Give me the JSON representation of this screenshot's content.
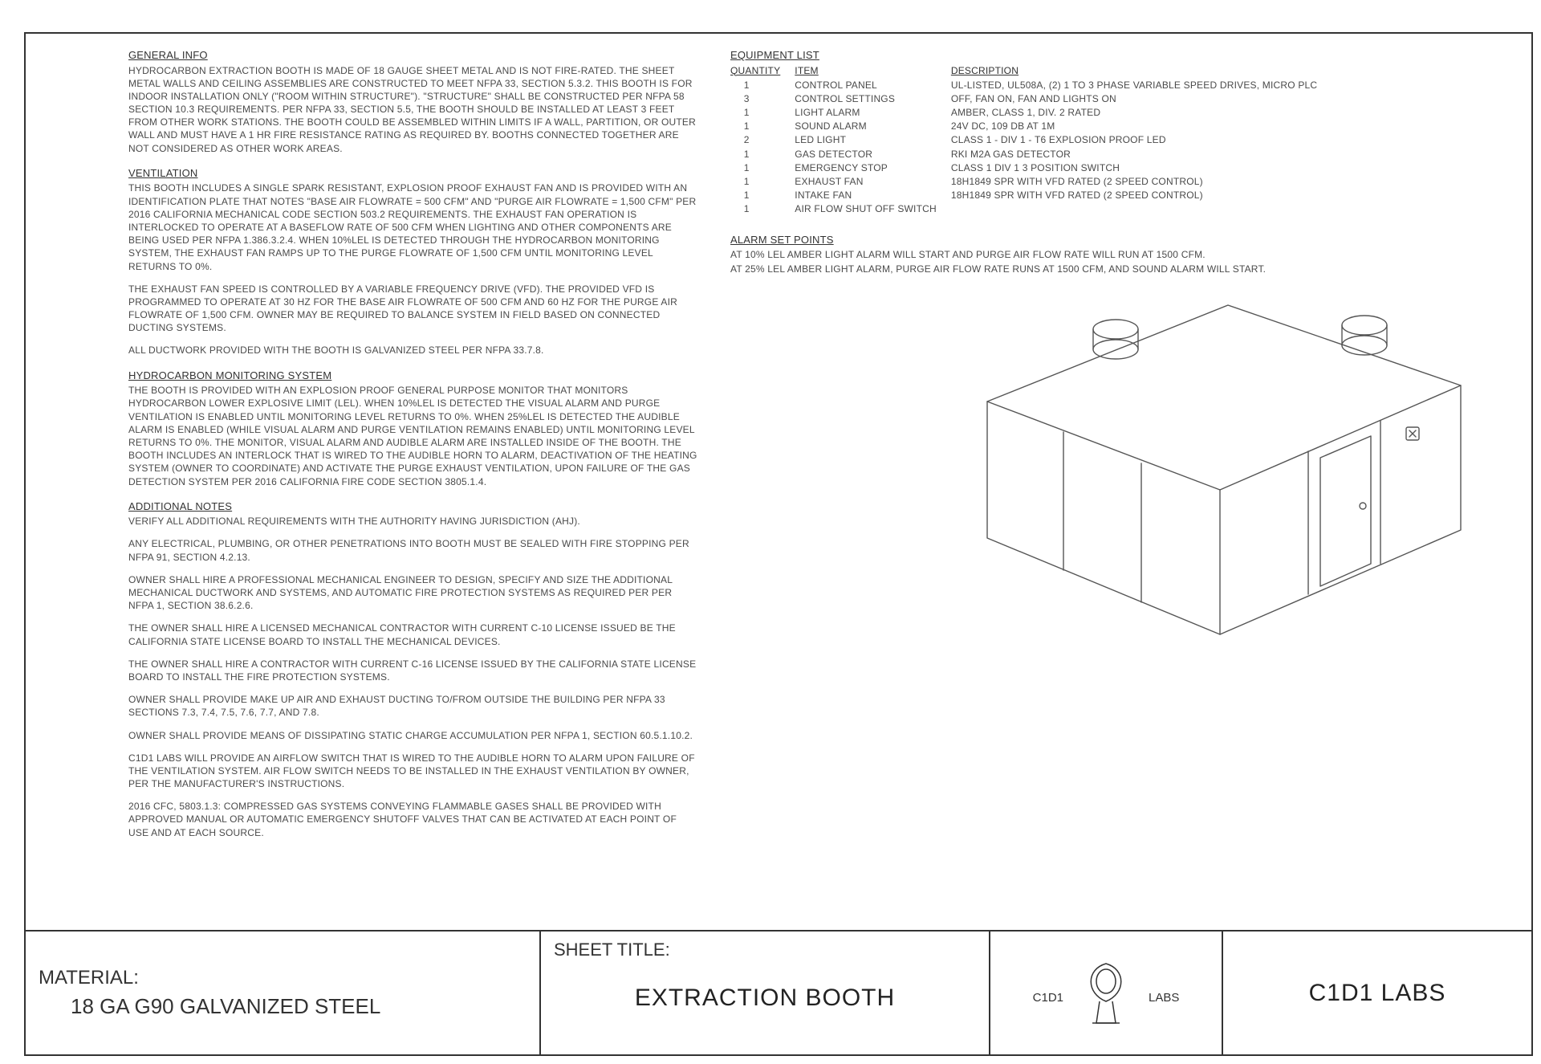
{
  "general_info": {
    "heading": "GENERAL INFO",
    "paragraphs": [
      "HYDROCARBON EXTRACTION BOOTH IS MADE OF 18 GAUGE SHEET METAL AND IS NOT FIRE-RATED. THE SHEET METAL WALLS AND CEILING ASSEMBLIES ARE CONSTRUCTED TO MEET NFPA 33, SECTION 5.3.2. THIS BOOTH IS FOR INDOOR INSTALLATION ONLY (\"ROOM WITHIN STRUCTURE\"). \"STRUCTURE\" SHALL BE CONSTRUCTED PER NFPA 58 SECTION 10.3 REQUIREMENTS. PER NFPA 33, SECTION 5.5, THE BOOTH SHOULD BE INSTALLED AT LEAST 3 FEET FROM OTHER WORK STATIONS. THE BOOTH COULD BE ASSEMBLED WITHIN LIMITS IF A WALL, PARTITION, OR OUTER WALL AND MUST HAVE A 1 HR FIRE RESISTANCE RATING AS REQUIRED BY. BOOTHS CONNECTED TOGETHER ARE NOT CONSIDERED AS OTHER WORK AREAS."
    ]
  },
  "ventilation": {
    "heading": "VENTILATION",
    "paragraphs": [
      "THIS BOOTH INCLUDES A SINGLE SPARK RESISTANT, EXPLOSION PROOF EXHAUST FAN AND IS PROVIDED WITH AN IDENTIFICATION PLATE THAT NOTES \"BASE AIR FLOWRATE = 500 CFM\" AND \"PURGE AIR FLOWRATE = 1,500 CFM\" PER 2016 CALIFORNIA MECHANICAL CODE SECTION 503.2 REQUIREMENTS. THE EXHAUST FAN OPERATION IS INTERLOCKED TO OPERATE AT A BASEFLOW RATE OF 500 CFM WHEN LIGHTING AND OTHER COMPONENTS ARE BEING USED PER NFPA 1.386.3.2.4. WHEN 10%LEL IS DETECTED THROUGH THE HYDROCARBON MONITORING SYSTEM, THE EXHAUST FAN RAMPS UP TO THE PURGE FLOWRATE OF 1,500 CFM UNTIL MONITORING LEVEL RETURNS TO 0%.",
      "THE EXHAUST FAN SPEED IS CONTROLLED BY A VARIABLE FREQUENCY DRIVE (VFD). THE PROVIDED VFD IS PROGRAMMED TO OPERATE AT 30 HZ FOR THE BASE AIR FLOWRATE OF 500 CFM AND 60 HZ FOR THE PURGE AIR FLOWRATE OF 1,500 CFM. OWNER MAY BE REQUIRED TO BALANCE SYSTEM IN FIELD BASED ON CONNECTED DUCTING SYSTEMS.",
      "ALL DUCTWORK PROVIDED WITH THE BOOTH IS GALVANIZED STEEL PER NFPA 33.7.8."
    ]
  },
  "monitoring": {
    "heading": "HYDROCARBON MONITORING SYSTEM",
    "paragraphs": [
      "THE BOOTH IS PROVIDED WITH AN EXPLOSION PROOF GENERAL PURPOSE MONITOR THAT MONITORS HYDROCARBON LOWER EXPLOSIVE LIMIT (LEL). WHEN 10%LEL IS DETECTED THE VISUAL ALARM AND PURGE VENTILATION IS ENABLED UNTIL MONITORING LEVEL RETURNS TO 0%. WHEN 25%LEL IS DETECTED THE AUDIBLE ALARM IS ENABLED (WHILE VISUAL ALARM AND PURGE VENTILATION REMAINS ENABLED) UNTIL MONITORING LEVEL RETURNS TO 0%. THE MONITOR, VISUAL ALARM AND AUDIBLE ALARM ARE INSTALLED INSIDE OF THE BOOTH. THE BOOTH INCLUDES AN INTERLOCK THAT IS WIRED TO THE AUDIBLE HORN TO ALARM, DEACTIVATION OF THE HEATING SYSTEM (OWNER TO COORDINATE) AND ACTIVATE THE PURGE EXHAUST VENTILATION, UPON FAILURE OF THE GAS DETECTION SYSTEM PER 2016 CALIFORNIA FIRE CODE SECTION 3805.1.4."
    ]
  },
  "additional": {
    "heading": "ADDITIONAL NOTES",
    "paragraphs": [
      "VERIFY ALL ADDITIONAL REQUIREMENTS WITH THE AUTHORITY HAVING JURISDICTION (AHJ).",
      "ANY ELECTRICAL, PLUMBING, OR OTHER PENETRATIONS INTO BOOTH MUST BE SEALED WITH FIRE STOPPING PER NFPA 91, SECTION 4.2.13.",
      "OWNER SHALL HIRE A PROFESSIONAL MECHANICAL ENGINEER TO DESIGN, SPECIFY AND SIZE THE ADDITIONAL MECHANICAL DUCTWORK AND SYSTEMS, AND AUTOMATIC FIRE PROTECTION SYSTEMS AS REQUIRED PER PER NFPA 1, SECTION 38.6.2.6.",
      "THE OWNER SHALL HIRE A LICENSED MECHANICAL CONTRACTOR WITH CURRENT C-10 LICENSE ISSUED BE THE CALIFORNIA STATE LICENSE BOARD TO INSTALL THE MECHANICAL DEVICES.",
      "THE OWNER SHALL HIRE A CONTRACTOR WITH CURRENT C-16 LICENSE ISSUED BY THE CALIFORNIA STATE LICENSE BOARD TO INSTALL THE FIRE PROTECTION SYSTEMS.",
      "OWNER SHALL PROVIDE MAKE UP AIR AND EXHAUST DUCTING TO/FROM OUTSIDE THE BUILDING PER NFPA 33 SECTIONS 7.3, 7.4, 7.5, 7.6, 7.7, AND 7.8.",
      "OWNER SHALL PROVIDE MEANS OF DISSIPATING STATIC CHARGE ACCUMULATION PER NFPA 1, SECTION 60.5.1.10.2.",
      "C1D1 LABS WILL PROVIDE AN AIRFLOW SWITCH THAT IS WIRED TO THE AUDIBLE HORN TO ALARM UPON FAILURE OF THE VENTILATION SYSTEM. AIR FLOW SWITCH NEEDS TO BE INSTALLED IN THE EXHAUST VENTILATION BY OWNER, PER THE MANUFACTURER'S INSTRUCTIONS.",
      "2016 CFC, 5803.1.3: COMPRESSED GAS SYSTEMS CONVEYING FLAMMABLE GASES SHALL BE PROVIDED WITH APPROVED MANUAL OR AUTOMATIC EMERGENCY SHUTOFF VALVES THAT CAN BE ACTIVATED AT EACH POINT OF USE AND AT EACH SOURCE."
    ]
  },
  "equipment": {
    "heading": "EQUIPMENT LIST",
    "columns": [
      "QUANTITY",
      "ITEM",
      "DESCRIPTION"
    ],
    "rows": [
      {
        "qty": "1",
        "item": "CONTROL PANEL",
        "desc": "UL-LISTED, UL508A, (2) 1 TO 3 PHASE VARIABLE SPEED DRIVES, MICRO PLC"
      },
      {
        "qty": "3",
        "item": "CONTROL SETTINGS",
        "desc": "OFF, FAN ON, FAN AND LIGHTS ON"
      },
      {
        "qty": "1",
        "item": "LIGHT ALARM",
        "desc": "AMBER, CLASS 1, DIV. 2 RATED"
      },
      {
        "qty": "1",
        "item": "SOUND ALARM",
        "desc": "24V DC, 109 DB AT 1M"
      },
      {
        "qty": "2",
        "item": "LED LIGHT",
        "desc": "CLASS 1 - DIV 1 - T6 EXPLOSION PROOF LED"
      },
      {
        "qty": "1",
        "item": "GAS DETECTOR",
        "desc": "RKI M2A GAS DETECTOR"
      },
      {
        "qty": "1",
        "item": "EMERGENCY STOP",
        "desc": "CLASS 1 DIV 1 3 POSITION SWITCH"
      },
      {
        "qty": "1",
        "item": "EXHAUST FAN",
        "desc": "18H1849 SPR WITH VFD RATED (2 SPEED CONTROL)"
      },
      {
        "qty": "1",
        "item": "INTAKE FAN",
        "desc": "18H1849 SPR WITH VFD RATED (2 SPEED CONTROL)"
      },
      {
        "qty": "1",
        "item": "AIR FLOW SHUT OFF SWITCH",
        "desc": ""
      }
    ]
  },
  "alarm": {
    "heading": "ALARM SET POINTS",
    "paragraphs": [
      "AT 10% LEL AMBER LIGHT ALARM WILL START AND PURGE AIR FLOW RATE WILL RUN AT 1500 CFM.",
      "AT 25% LEL AMBER LIGHT ALARM, PURGE AIR FLOW RATE RUNS AT 1500 CFM, AND SOUND ALARM WILL START."
    ]
  },
  "titleblock": {
    "material_label": "MATERIAL:",
    "material_value": "18 GA G90 GALVANIZED STEEL",
    "sheet_label": "SHEET TITLE:",
    "sheet_value": "EXTRACTION BOOTH",
    "logo_left": "C1D1",
    "logo_right": "LABS",
    "company": "C1D1 LABS"
  },
  "drawing": {
    "stroke": "#555555",
    "stroke_width": 1.4,
    "fill": "#ffffff"
  }
}
